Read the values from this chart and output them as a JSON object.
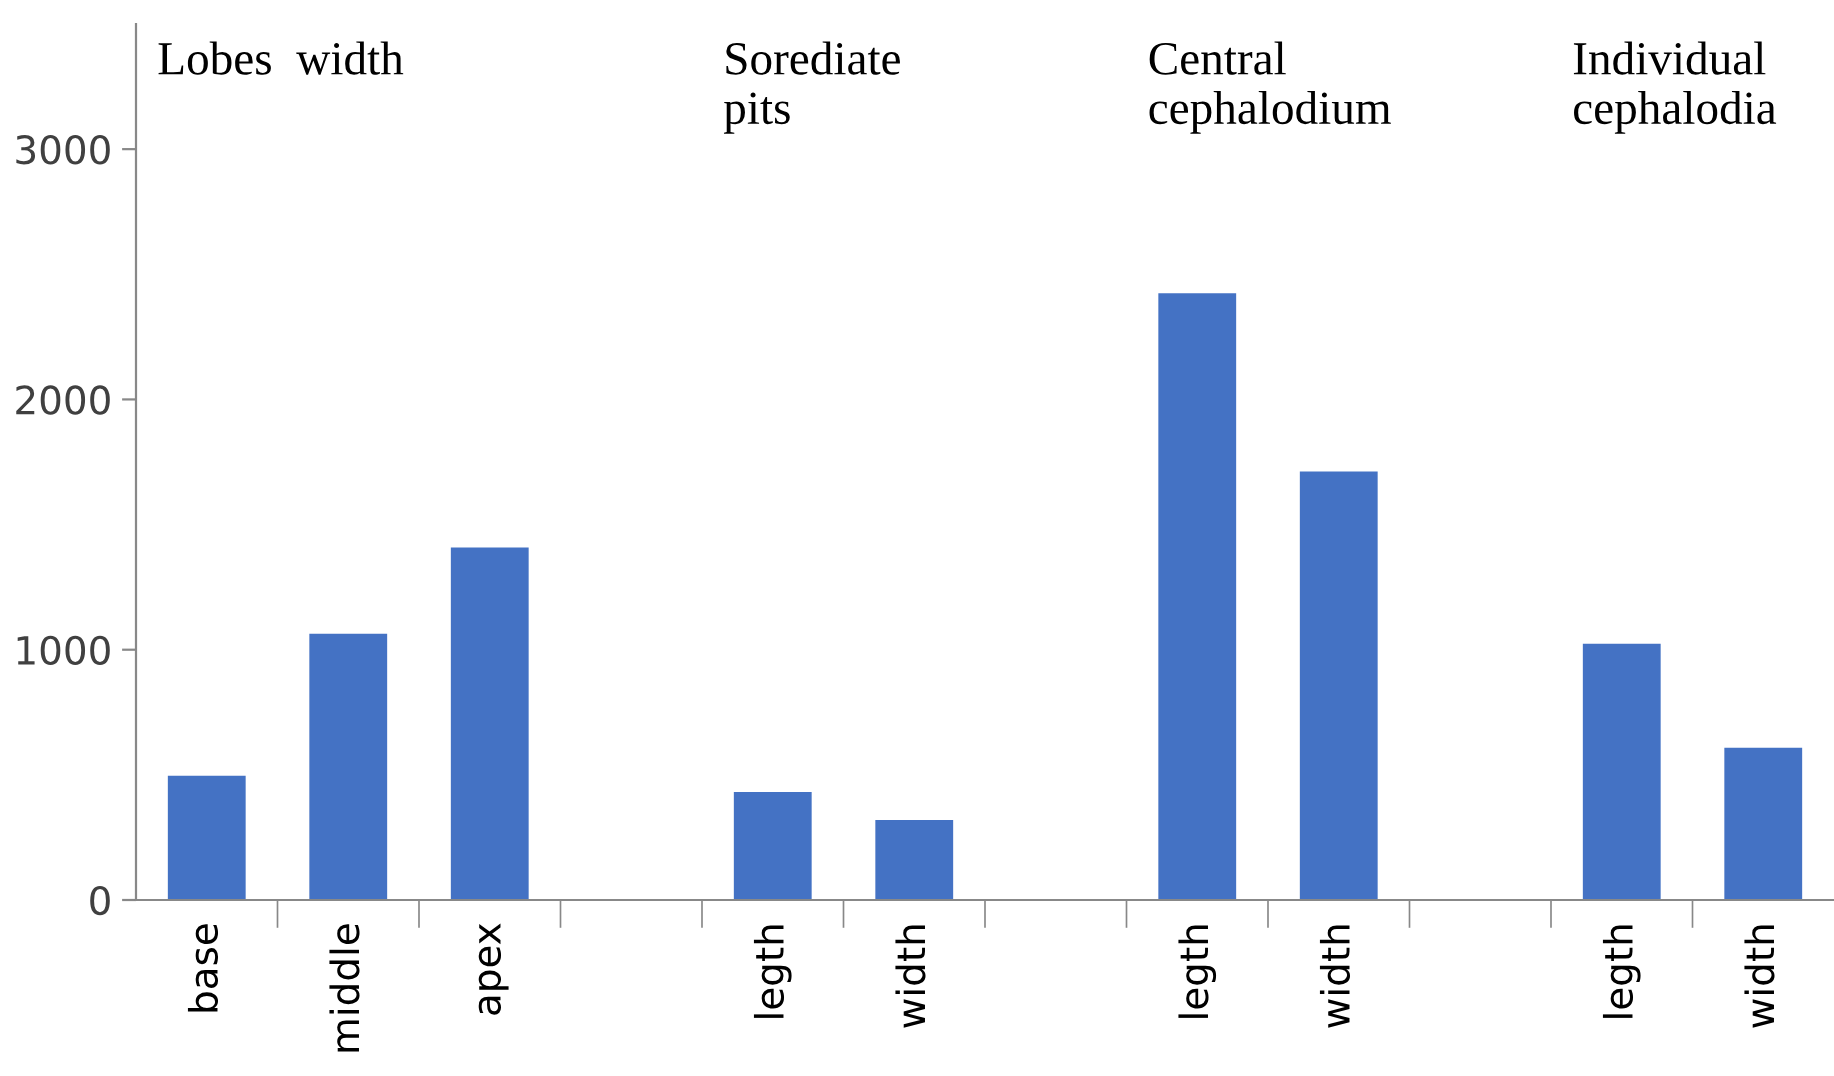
{
  "chart_data": {
    "type": "bar",
    "categories": [
      "base",
      "middle",
      "apex",
      null,
      "legth",
      "width",
      null,
      "legth",
      "width",
      null,
      "legth",
      "width"
    ],
    "values": [
      496,
      1064,
      1408,
      null,
      432,
      320,
      null,
      2424,
      1712,
      null,
      1024,
      608
    ],
    "color": "#4472c4",
    "ylim": [
      0,
      3500
    ],
    "yticks": [
      0,
      1000,
      2000,
      3000
    ],
    "grid": false,
    "annotations": [
      "Lobes  width",
      "Sorediate\npits",
      "Central\ncephalodium",
      "Individual\ncephalodia"
    ]
  }
}
